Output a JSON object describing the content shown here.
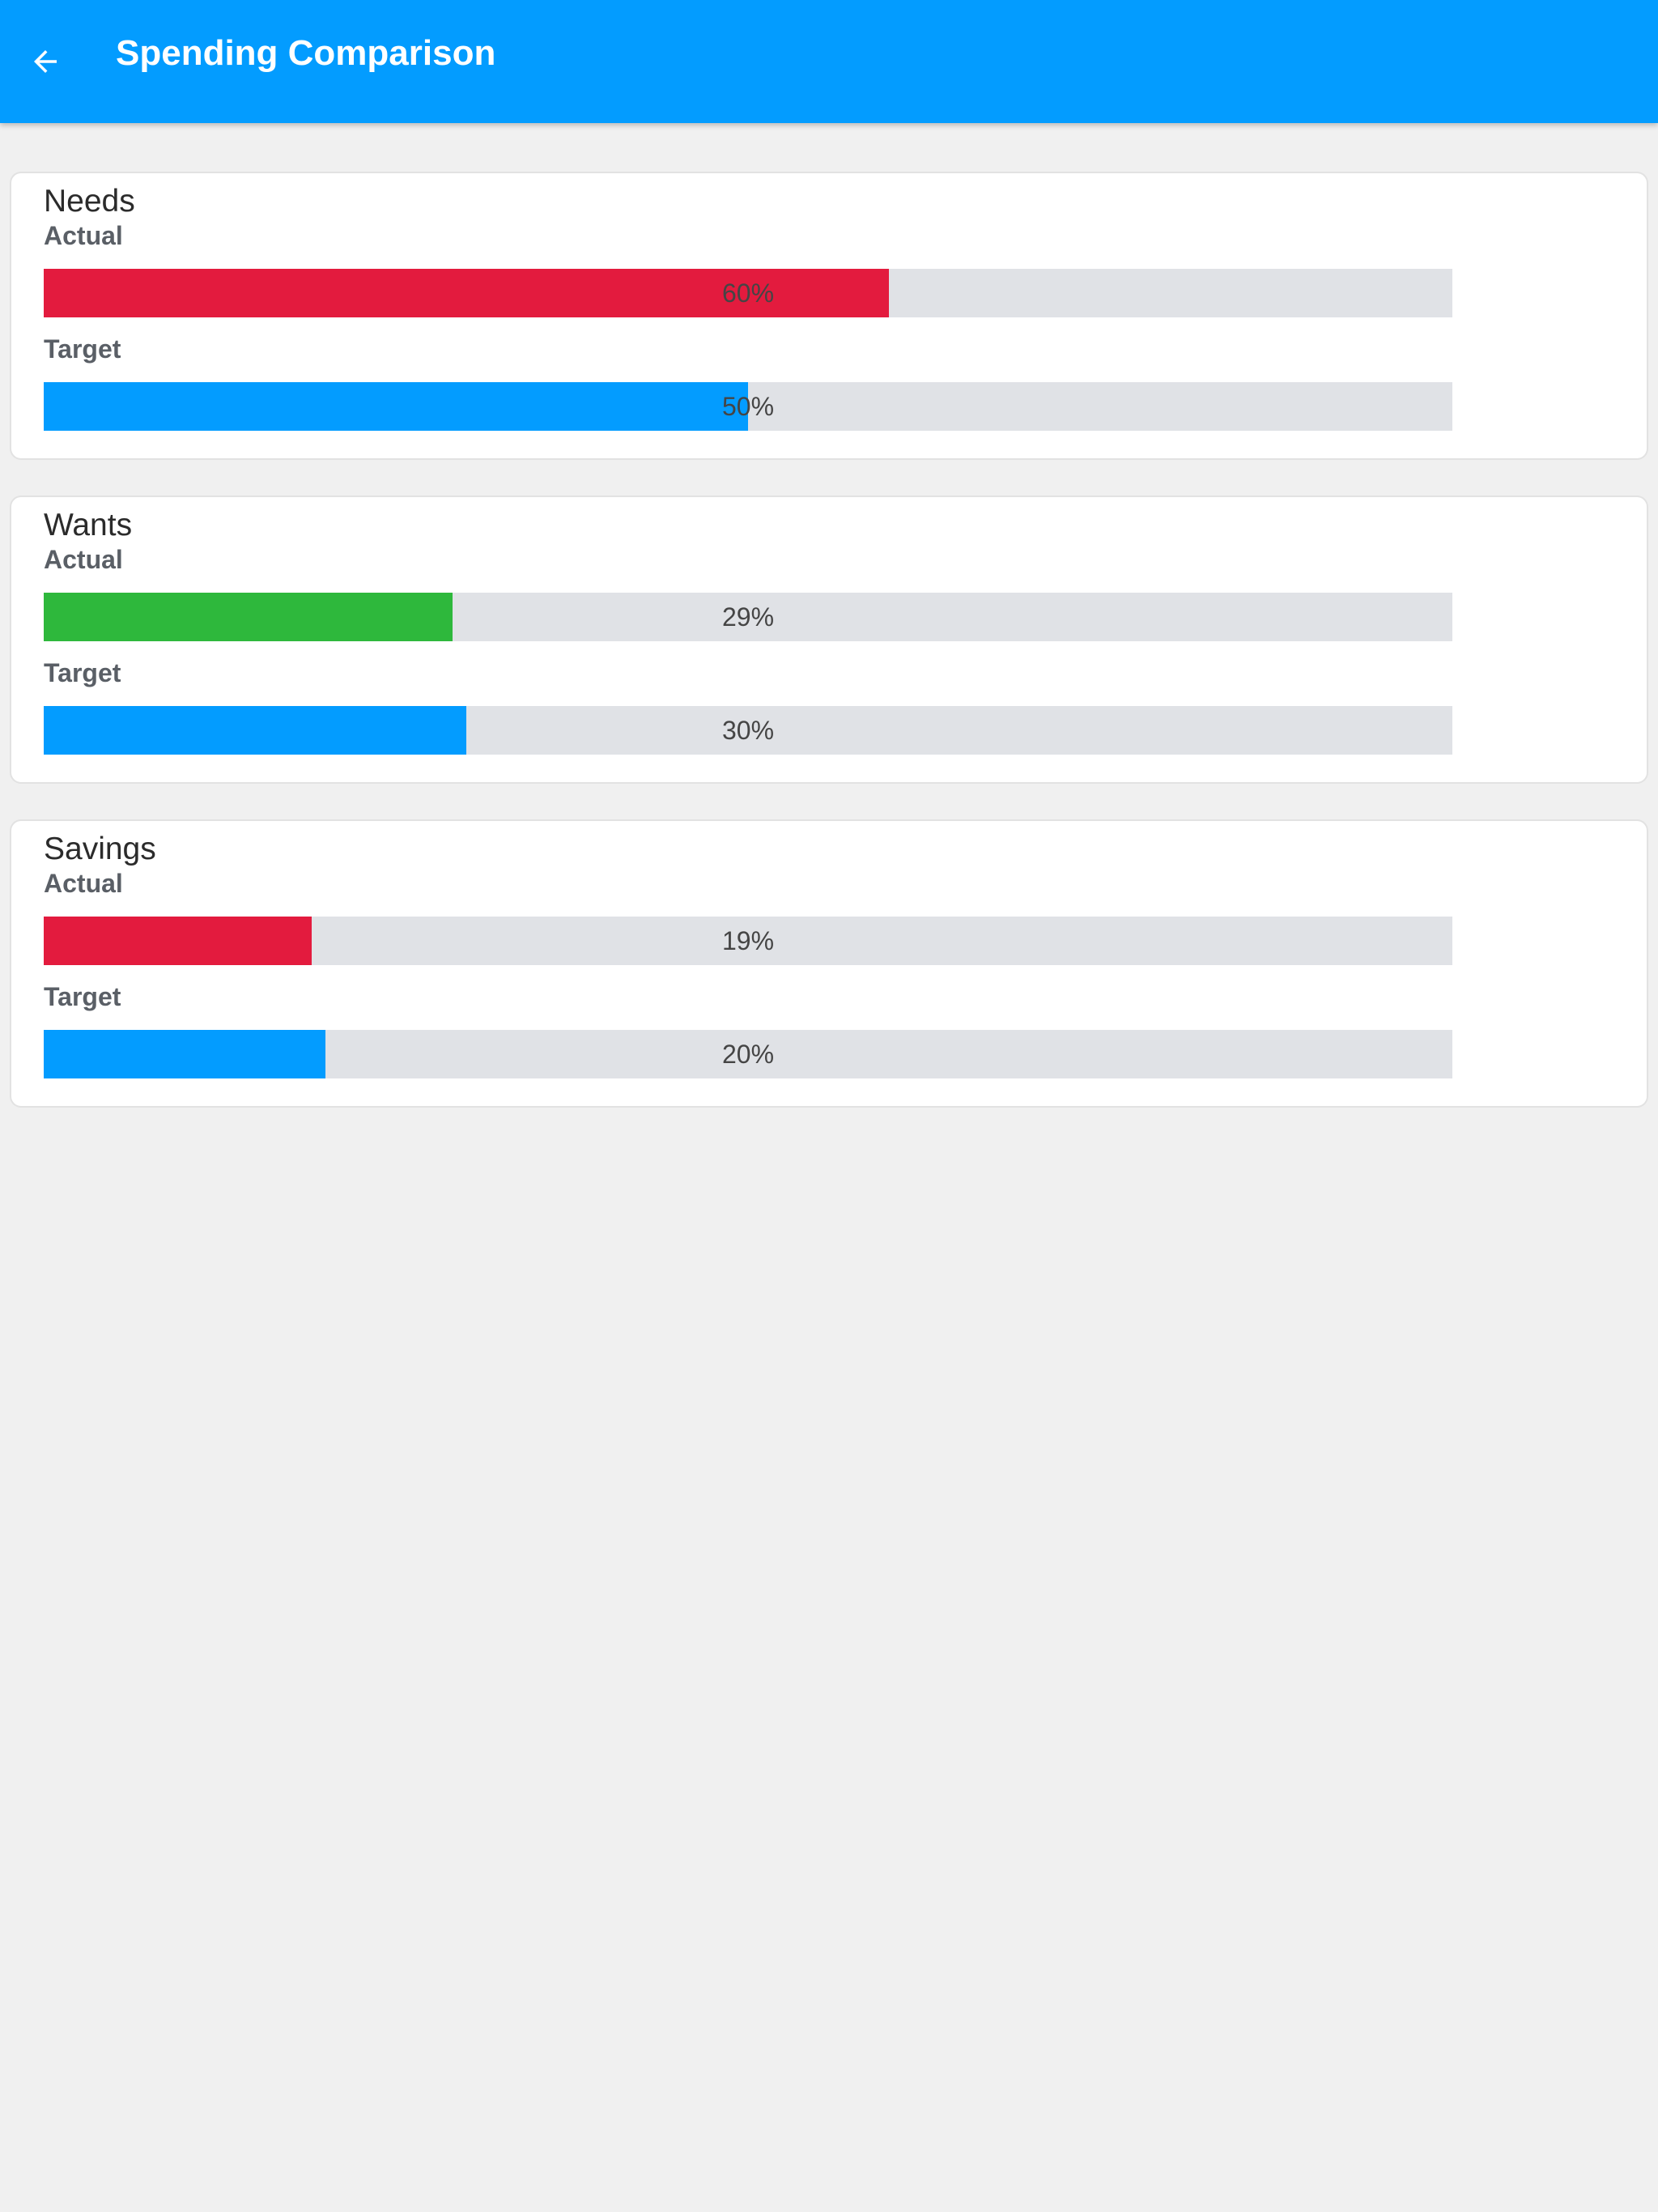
{
  "header": {
    "title": "Spending Comparison",
    "back_icon": "arrow-left-icon",
    "background_color": "#039cff"
  },
  "comparison": {
    "categories": [
      {
        "name": "Needs",
        "actual": {
          "label": "Actual",
          "percent": 60,
          "display": "60%",
          "color": "#e31b3e"
        },
        "target": {
          "label": "Target",
          "percent": 50,
          "display": "50%",
          "color": "#039cff"
        }
      },
      {
        "name": "Wants",
        "actual": {
          "label": "Actual",
          "percent": 29,
          "display": "29%",
          "color": "#2eb83c"
        },
        "target": {
          "label": "Target",
          "percent": 30,
          "display": "30%",
          "color": "#039cff"
        }
      },
      {
        "name": "Savings",
        "actual": {
          "label": "Actual",
          "percent": 19,
          "display": "19%",
          "color": "#e31b3e"
        },
        "target": {
          "label": "Target",
          "percent": 20,
          "display": "20%",
          "color": "#039cff"
        }
      }
    ],
    "track_color": "#e0e2e6"
  }
}
